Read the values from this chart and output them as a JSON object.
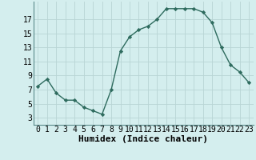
{
  "x": [
    0,
    1,
    2,
    3,
    4,
    5,
    6,
    7,
    8,
    9,
    10,
    11,
    12,
    13,
    14,
    15,
    16,
    17,
    18,
    19,
    20,
    21,
    22,
    23
  ],
  "y": [
    7.5,
    8.5,
    6.5,
    5.5,
    5.5,
    4.5,
    4.0,
    3.5,
    7.0,
    12.5,
    14.5,
    15.5,
    16.0,
    17.0,
    18.5,
    18.5,
    18.5,
    18.5,
    18.0,
    16.5,
    13.0,
    10.5,
    9.5,
    8.0
  ],
  "xlabel": "Humidex (Indice chaleur)",
  "xlim": [
    -0.5,
    23.5
  ],
  "ylim": [
    2,
    19.5
  ],
  "yticks": [
    3,
    5,
    7,
    9,
    11,
    13,
    15,
    17
  ],
  "xtick_labels": [
    "0",
    "1",
    "2",
    "3",
    "4",
    "5",
    "6",
    "7",
    "8",
    "9",
    "10",
    "11",
    "12",
    "13",
    "14",
    "15",
    "16",
    "17",
    "18",
    "19",
    "20",
    "21",
    "22",
    "23"
  ],
  "line_color": "#2e6b5e",
  "marker": "D",
  "marker_size": 2.2,
  "bg_color": "#d4eeee",
  "grid_color": "#b8d4d4",
  "label_fontsize": 8,
  "tick_fontsize": 7
}
